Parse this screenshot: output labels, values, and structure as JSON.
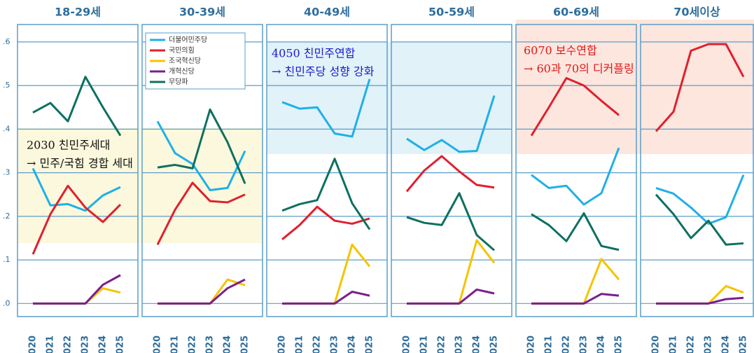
{
  "chart_data": [
    {
      "type": "line",
      "title": "18-29세",
      "categories": [
        "2020",
        "2021",
        "2022",
        "2023",
        "2024",
        "2025"
      ],
      "ylim": [
        -0.03,
        0.64
      ],
      "yticks": [
        {
          "value": 0,
          "label": ".0"
        },
        {
          "value": 0.1,
          "label": ".1"
        },
        {
          "value": 0.2,
          "label": ".2"
        },
        {
          "value": 0.3,
          "label": ".3"
        },
        {
          "value": 0.4,
          "label": ".4"
        },
        {
          "value": 0.5,
          "label": ".5"
        },
        {
          "value": 0.6,
          "label": ".6"
        }
      ],
      "grid": true,
      "annotations": [
        "2030 친민주세대",
        "→ 민주/국힘 경합 세대"
      ],
      "annotation_color": "#111111",
      "series": [
        {
          "name": "더불어민주당",
          "color": "#1fb0e6",
          "values": [
            0.31,
            0.225,
            0.228,
            0.213,
            0.248,
            0.267
          ]
        },
        {
          "name": "국민의힘",
          "color": "#e0202e",
          "values": [
            0.113,
            0.205,
            0.27,
            0.22,
            0.187,
            0.227
          ]
        },
        {
          "name": "조국혁신당",
          "color": "#f5c400",
          "values": [
            0,
            0,
            0,
            0,
            0.035,
            0.025
          ]
        },
        {
          "name": "개혁신당",
          "color": "#7a1f8c",
          "values": [
            0,
            0,
            0,
            0,
            0.043,
            0.065
          ]
        },
        {
          "name": "무당파",
          "color": "#0e7060",
          "values": [
            0.438,
            0.46,
            0.418,
            0.52,
            0.45,
            0.385
          ]
        }
      ]
    },
    {
      "type": "line",
      "title": "30-39세",
      "categories": [
        "2020",
        "2021",
        "2022",
        "2023",
        "2024",
        "2025"
      ],
      "ylim": [
        -0.03,
        0.64
      ],
      "yticks": [
        0,
        0.1,
        0.2,
        0.3,
        0.4,
        0.5,
        0.6
      ],
      "grid": true,
      "legend": "upper left",
      "series": [
        {
          "name": "더불어민주당",
          "color": "#1fb0e6",
          "values": [
            0.418,
            0.345,
            0.32,
            0.26,
            0.265,
            0.35
          ]
        },
        {
          "name": "국민의힘",
          "color": "#e0202e",
          "values": [
            0.135,
            0.215,
            0.277,
            0.235,
            0.232,
            0.25
          ]
        },
        {
          "name": "조국혁신당",
          "color": "#f5c400",
          "values": [
            0,
            0,
            0,
            0,
            0.055,
            0.042
          ]
        },
        {
          "name": "개혁신당",
          "color": "#7a1f8c",
          "values": [
            0,
            0,
            0,
            0,
            0.035,
            0.055
          ]
        },
        {
          "name": "무당파",
          "color": "#0e7060",
          "values": [
            0.312,
            0.318,
            0.31,
            0.445,
            0.37,
            0.275
          ]
        }
      ]
    },
    {
      "type": "line",
      "title": "40-49세",
      "categories": [
        "2020",
        "2021",
        "2022",
        "2023",
        "2024",
        "2025"
      ],
      "ylim": [
        -0.03,
        0.64
      ],
      "yticks": [
        0,
        0.1,
        0.2,
        0.3,
        0.4,
        0.5,
        0.6
      ],
      "grid": true,
      "annotations": [
        "4050 친민주연합",
        "→ 친민주당 성향 강화"
      ],
      "annotation_color": "#1a1ad0",
      "series": [
        {
          "name": "더불어민주당",
          "color": "#1fb0e6",
          "values": [
            0.462,
            0.447,
            0.45,
            0.39,
            0.383,
            0.515
          ]
        },
        {
          "name": "국민의힘",
          "color": "#e0202e",
          "values": [
            0.147,
            0.18,
            0.222,
            0.19,
            0.183,
            0.195
          ]
        },
        {
          "name": "조국혁신당",
          "color": "#f5c400",
          "values": [
            0,
            0,
            0,
            0,
            0.135,
            0.085
          ]
        },
        {
          "name": "개혁신당",
          "color": "#7a1f8c",
          "values": [
            0,
            0,
            0,
            0,
            0.027,
            0.018
          ]
        },
        {
          "name": "무당파",
          "color": "#0e7060",
          "values": [
            0.213,
            0.228,
            0.237,
            0.332,
            0.23,
            0.17
          ]
        }
      ]
    },
    {
      "type": "line",
      "title": "50-59세",
      "categories": [
        "2020",
        "2021",
        "2022",
        "2023",
        "2024",
        "2025"
      ],
      "ylim": [
        -0.03,
        0.64
      ],
      "yticks": [
        0,
        0.1,
        0.2,
        0.3,
        0.4,
        0.5,
        0.6
      ],
      "grid": true,
      "series": [
        {
          "name": "더불어민주당",
          "color": "#1fb0e6",
          "values": [
            0.378,
            0.352,
            0.375,
            0.348,
            0.35,
            0.477
          ]
        },
        {
          "name": "국민의힘",
          "color": "#e0202e",
          "values": [
            0.257,
            0.305,
            0.338,
            0.303,
            0.272,
            0.266
          ]
        },
        {
          "name": "조국혁신당",
          "color": "#f5c400",
          "values": [
            0,
            0,
            0,
            0,
            0.145,
            0.093
          ]
        },
        {
          "name": "개혁신당",
          "color": "#7a1f8c",
          "values": [
            0,
            0,
            0,
            0,
            0.032,
            0.023
          ]
        },
        {
          "name": "무당파",
          "color": "#0e7060",
          "values": [
            0.198,
            0.185,
            0.18,
            0.253,
            0.157,
            0.122
          ]
        }
      ]
    },
    {
      "type": "line",
      "title": "60-69세",
      "categories": [
        "2020",
        "2021",
        "2022",
        "2023",
        "2024",
        "2025"
      ],
      "ylim": [
        -0.03,
        0.64
      ],
      "yticks": [
        0,
        0.1,
        0.2,
        0.3,
        0.4,
        0.5,
        0.6
      ],
      "grid": true,
      "annotations": [
        "6070 보수연합",
        "→ 60과 70의 디커플링"
      ],
      "annotation_color": "#e01818",
      "series": [
        {
          "name": "더불어민주당",
          "color": "#1fb0e6",
          "values": [
            0.295,
            0.265,
            0.27,
            0.227,
            0.253,
            0.357
          ]
        },
        {
          "name": "국민의힘",
          "color": "#e0202e",
          "values": [
            0.385,
            0.45,
            0.517,
            0.5,
            0.465,
            0.432
          ]
        },
        {
          "name": "조국혁신당",
          "color": "#f5c400",
          "values": [
            0,
            0,
            0,
            0,
            0.102,
            0.055
          ]
        },
        {
          "name": "개혁신당",
          "color": "#7a1f8c",
          "values": [
            0,
            0,
            0,
            0,
            0.022,
            0.018
          ]
        },
        {
          "name": "무당파",
          "color": "#0e7060",
          "values": [
            0.205,
            0.18,
            0.143,
            0.207,
            0.132,
            0.123
          ]
        }
      ]
    },
    {
      "type": "line",
      "title": "70세이상",
      "categories": [
        "2020",
        "2021",
        "2022",
        "2023",
        "2024",
        "2025"
      ],
      "ylim": [
        -0.03,
        0.64
      ],
      "yticks": [
        0,
        0.1,
        0.2,
        0.3,
        0.4,
        0.5,
        0.6
      ],
      "grid": true,
      "series": [
        {
          "name": "더불어민주당",
          "color": "#1fb0e6",
          "values": [
            0.265,
            0.252,
            0.22,
            0.183,
            0.198,
            0.295
          ]
        },
        {
          "name": "국민의힘",
          "color": "#e0202e",
          "values": [
            0.395,
            0.44,
            0.58,
            0.595,
            0.595,
            0.52
          ]
        },
        {
          "name": "조국혁신당",
          "color": "#f5c400",
          "values": [
            0,
            0,
            0,
            0,
            0.04,
            0.025
          ]
        },
        {
          "name": "개혁신당",
          "color": "#7a1f8c",
          "values": [
            0,
            0,
            0,
            0,
            0.01,
            0.013
          ]
        },
        {
          "name": "무당파",
          "color": "#0e7060",
          "values": [
            0.25,
            0.205,
            0.15,
            0.19,
            0.135,
            0.138
          ]
        }
      ]
    }
  ]
}
